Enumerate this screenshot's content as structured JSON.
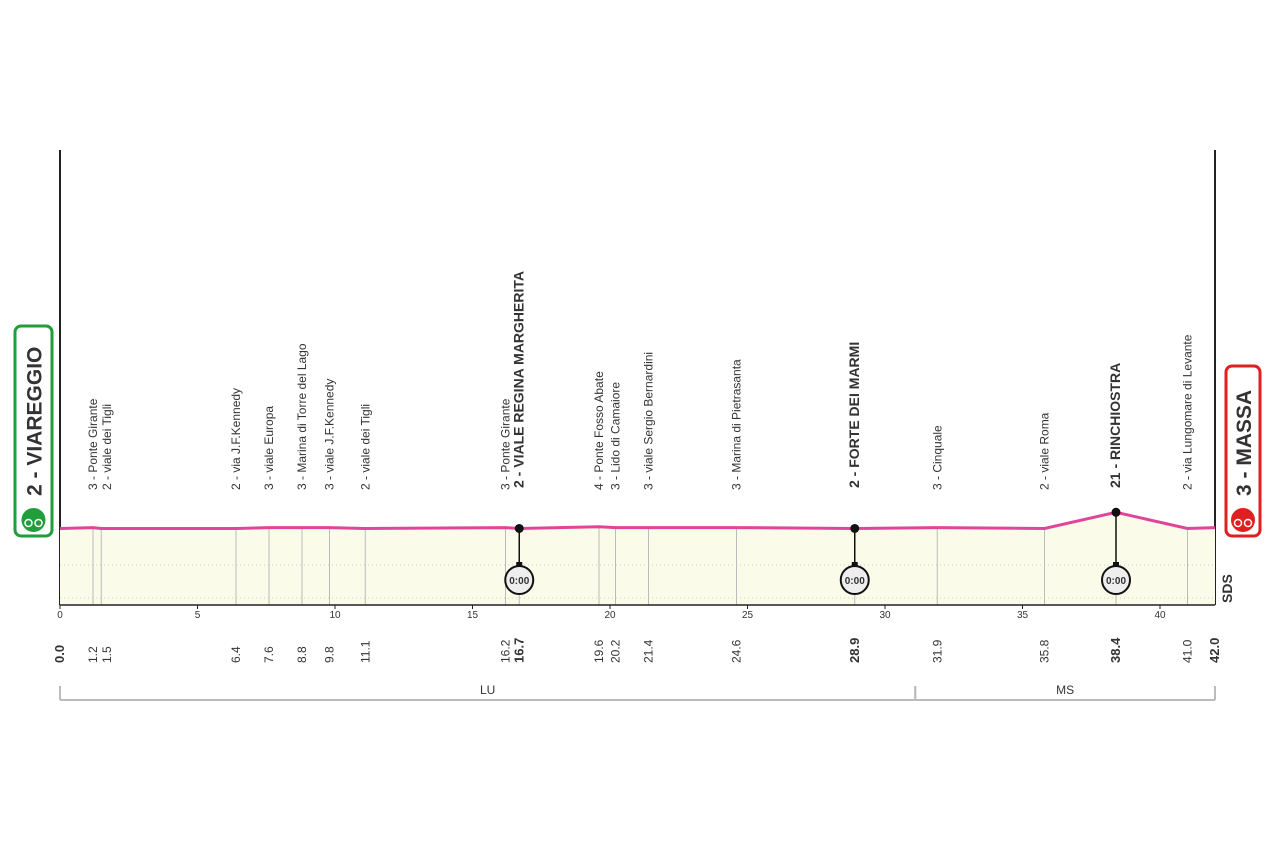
{
  "chart_data": {
    "type": "line",
    "x": [
      0,
      1.2,
      1.5,
      6.4,
      7.6,
      8.8,
      9.8,
      11.1,
      16.2,
      16.7,
      19.6,
      20.2,
      21.4,
      24.6,
      28.9,
      31.9,
      35.8,
      38.4,
      41.0,
      42
    ],
    "x_labels": [
      "0.0",
      "1.2",
      "1.5",
      "6.4",
      "7.6",
      "8.8",
      "9.8",
      "11.1",
      "16.2",
      "16.7",
      "19.6",
      "20.2",
      "21.4",
      "24.6",
      "28.9",
      "31.9",
      "35.8",
      "38.4",
      "41.0",
      "42.0"
    ],
    "values": [
      2,
      3,
      2,
      2,
      3,
      3,
      3,
      2,
      3,
      2,
      4,
      3,
      3,
      3,
      2,
      3,
      2,
      21,
      2,
      3
    ],
    "value_labels": [
      "2 - VIAREGGIO",
      "3 - Ponte Girante",
      "2 - viale dei Tigli",
      "2 - via J.F.Kennedy",
      "3 - viale Europa",
      "3 - Marina di Torre del Lago",
      "3 - viale J.F.Kennedy",
      "2 - viale dei Tigli",
      "3 - Ponte Girante",
      "2 - VIALE REGINA MARGHERITA",
      "4 - Ponte Fosso Abate",
      "3 - Lido di Camaiore",
      "3 - viale Sergio Bernardini",
      "3 - Marina di Pietrasanta",
      "2 - FORTE DEI MARMI",
      "3 - Cinquale",
      "2 - viale Roma",
      "21 - RINCHIOSTRA",
      "2 - via Lungomare di Levante",
      "3 - MASSA"
    ],
    "color": "#e0459a",
    "xlim": [
      0,
      42
    ],
    "xticks": [
      0,
      5,
      10,
      15,
      20,
      25,
      30,
      35,
      40
    ],
    "ylim": [
      -88,
      447
    ],
    "time_checks": [
      {
        "x": 16.7,
        "label": "0:00"
      },
      {
        "x": 28.9,
        "label": "0:00"
      },
      {
        "x": 38.4,
        "label": "0:00"
      }
    ],
    "regions": [
      {
        "name": "LU",
        "start": 0,
        "end": 31.1
      },
      {
        "name": "MS",
        "start": 31.1,
        "end": 42
      }
    ],
    "logo": "SDS"
  }
}
